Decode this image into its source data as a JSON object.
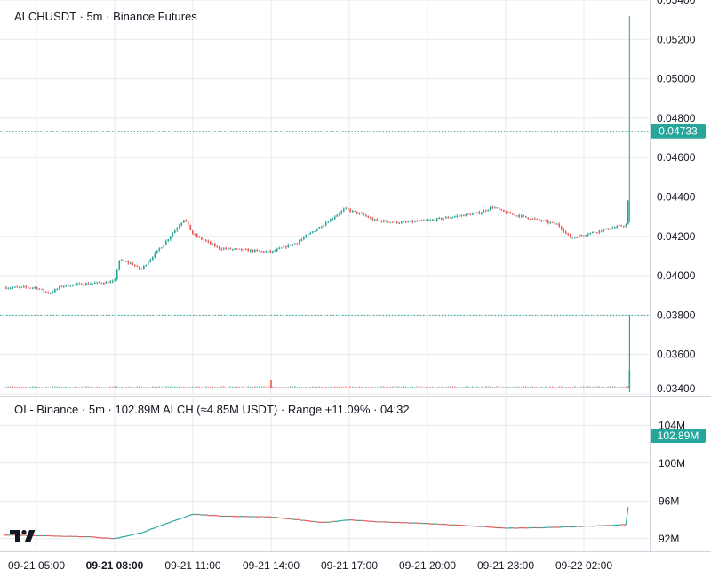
{
  "colors": {
    "up": "#26a69a",
    "down": "#ef5350",
    "grid": "#e6e8ec",
    "axis_text": "#131722",
    "price_line": "#26a69a"
  },
  "price_pane": {
    "header": {
      "symbol": "ALCHUSDT",
      "sep1": "·",
      "interval": "5m",
      "sep2": "·",
      "exchange": "Binance Futures"
    },
    "current_price_label": "0.04733",
    "y_ticks": [
      "0.05400",
      "0.05200",
      "0.05000",
      "0.04800",
      "0.04600",
      "0.04400",
      "0.04200",
      "0.04000",
      "0.03800",
      "0.03600",
      "0.03400"
    ]
  },
  "oi_pane": {
    "header": {
      "name": "OI - Binance",
      "sep1": "·",
      "interval": "5m",
      "sep2": "·",
      "value": "102.89M ALCH (≈4.85M USDT)",
      "sep3": "·",
      "range": "Range +11.09%",
      "sep4": "·",
      "countdown": "04:32"
    },
    "current_label": "102.89M",
    "y_ticks": [
      "104M",
      "100M",
      "96M",
      "92M"
    ]
  },
  "x_axis": {
    "ticks": [
      "09-21 05:00",
      "09-21 08:00",
      "09-21 11:00",
      "09-21 14:00",
      "09-21 17:00",
      "09-21 20:00",
      "09-21 23:00",
      "09-22 02:00"
    ],
    "bold_index": 1
  },
  "icons": {
    "logo": "tradingview-logo"
  },
  "chart_data": [
    {
      "type": "candlestick",
      "title": "ALCHUSDT · 5m · Binance Futures",
      "y_range": [
        0.034,
        0.054
      ],
      "reference_levels": [
        0.04733,
        0.038
      ],
      "current_value": 0.04733,
      "close_path": [
        [
          "09-21 03:50",
          0.0394
        ],
        [
          "09-21 05:00",
          0.0394
        ],
        [
          "09-21 05:30",
          0.0391
        ],
        [
          "09-21 06:00",
          0.0395
        ],
        [
          "09-21 07:00",
          0.0396
        ],
        [
          "09-21 08:00",
          0.0397
        ],
        [
          "09-21 08:10",
          0.0408
        ],
        [
          "09-21 08:40",
          0.0406
        ],
        [
          "09-21 09:00",
          0.0403
        ],
        [
          "09-21 10:00",
          0.0418
        ],
        [
          "09-21 10:40",
          0.0429
        ],
        [
          "09-21 11:00",
          0.0421
        ],
        [
          "09-21 12:00",
          0.0414
        ],
        [
          "09-21 13:00",
          0.0413
        ],
        [
          "09-21 14:00",
          0.0412
        ],
        [
          "09-21 15:00",
          0.0417
        ],
        [
          "09-21 16:00",
          0.0426
        ],
        [
          "09-21 16:50",
          0.0434
        ],
        [
          "09-21 17:30",
          0.0431
        ],
        [
          "09-21 18:00",
          0.0428
        ],
        [
          "09-21 19:00",
          0.0427
        ],
        [
          "09-21 20:00",
          0.0428
        ],
        [
          "09-21 21:00",
          0.043
        ],
        [
          "09-21 22:00",
          0.0432
        ],
        [
          "09-21 22:30",
          0.0435
        ],
        [
          "09-21 23:00",
          0.0432
        ],
        [
          "09-22 00:00",
          0.0429
        ],
        [
          "09-22 01:00",
          0.0426
        ],
        [
          "09-22 01:30",
          0.0419
        ],
        [
          "09-22 02:00",
          0.0421
        ],
        [
          "09-22 03:00",
          0.0424
        ],
        [
          "09-22 03:40",
          0.0426
        ],
        [
          "09-22 03:45",
          0.0458
        ]
      ]
    },
    {
      "type": "bar",
      "title": "Volume",
      "spikes": [
        [
          "09-21 14:00",
          1.0
        ],
        [
          "09-22 03:45",
          2.2
        ]
      ],
      "baseline": 0.15
    },
    {
      "type": "line",
      "title": "OI - Binance · 5m",
      "y_range": [
        90,
        106
      ],
      "ylabel": "M ALCH",
      "current_value": 102.89,
      "series": [
        {
          "values": [
            [
              "09-21 03:50",
              92.4
            ],
            [
              "09-21 07:00",
              92.2
            ],
            [
              "09-21 08:00",
              92.0
            ],
            [
              "09-21 09:00",
              92.6
            ],
            [
              "09-21 10:00",
              93.6
            ],
            [
              "09-21 11:00",
              94.6
            ],
            [
              "09-21 12:00",
              94.4
            ],
            [
              "09-21 14:00",
              94.3
            ],
            [
              "09-21 15:00",
              94.0
            ],
            [
              "09-21 16:00",
              93.7
            ],
            [
              "09-21 17:00",
              94.0
            ],
            [
              "09-21 18:00",
              93.8
            ],
            [
              "09-21 20:00",
              93.6
            ],
            [
              "09-21 22:00",
              93.3
            ],
            [
              "09-21 23:00",
              93.1
            ],
            [
              "09-22 01:00",
              93.2
            ],
            [
              "09-22 02:00",
              93.3
            ],
            [
              "09-22 03:00",
              93.4
            ],
            [
              "09-22 03:40",
              93.5
            ],
            [
              "09-22 03:42",
              95.5
            ],
            [
              "09-22 03:45",
              102.89
            ]
          ]
        }
      ]
    }
  ]
}
